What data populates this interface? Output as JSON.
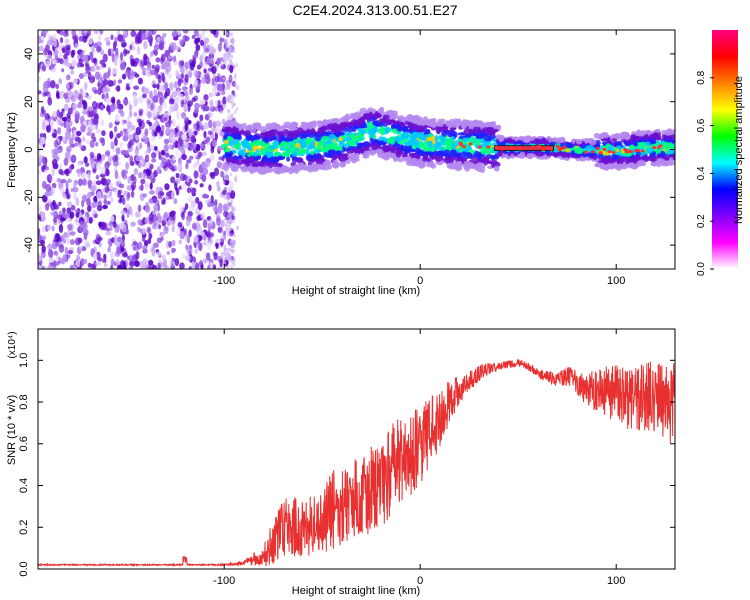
{
  "title": "C2E4.2024.313.00.51.E27",
  "colors": {
    "snr_line": "#e83030",
    "spectral_tint": "#7b2fd9",
    "track_core": "#e0304a"
  },
  "colorbar": {
    "label": "Normalized spectral amplitude",
    "ticks": [
      "0.0",
      "0.2",
      "0.4",
      "0.6",
      "0.8"
    ],
    "colormap": [
      "#ffffff",
      "#ff00ff",
      "#8000ff",
      "#0000ff",
      "#00ffff",
      "#00ff00",
      "#ffff00",
      "#ff8000",
      "#ff0000",
      "#ff0080"
    ]
  },
  "chart_data": [
    {
      "type": "heatmap",
      "title": "C2E4.2024.313.00.51.E27",
      "xlabel": "Height of straight line (km)",
      "ylabel": "Frequency (Hz)",
      "xlim": [
        -195,
        130
      ],
      "ylim": [
        -50,
        50
      ],
      "xticks": [
        "-100",
        "0",
        "100"
      ],
      "yticks": [
        "-40",
        "-20",
        "0",
        "20",
        "40"
      ],
      "colorbar_range": [
        0,
        1
      ],
      "track": {
        "x": [
          -100,
          -80,
          -60,
          -40,
          -25,
          -10,
          0,
          20,
          40,
          60,
          80,
          100,
          120,
          130
        ],
        "center_hz": [
          2,
          0,
          1,
          3,
          8,
          5,
          3,
          2,
          1,
          1,
          0,
          -1,
          1,
          1
        ]
      }
    },
    {
      "type": "line",
      "xlabel": "Height of straight line (km)",
      "ylabel": "SNR (10 * v/v)",
      "y_multiplier": "(x10⁴)",
      "xlim": [
        -195,
        130
      ],
      "ylim": [
        0,
        1.15
      ],
      "xticks": [
        "-100",
        "0",
        "100"
      ],
      "yticks": [
        "0.0",
        "0.2",
        "0.4",
        "0.6",
        "0.8",
        "1.0"
      ],
      "series": [
        {
          "x": [
            -195,
            -180,
            -160,
            -140,
            -120,
            -100,
            -90,
            -80,
            -75,
            -70,
            -65,
            -60,
            -55,
            -50,
            -45,
            -40,
            -35,
            -30,
            -25,
            -20,
            -15,
            -10,
            -5,
            0,
            5,
            10,
            15,
            20,
            25,
            30,
            35,
            40,
            45,
            50,
            55,
            60,
            65,
            70,
            75,
            80,
            85,
            90,
            95,
            100,
            105,
            110,
            115,
            120,
            125,
            130
          ],
          "values": [
            0.02,
            0.02,
            0.02,
            0.02,
            0.02,
            0.02,
            0.03,
            0.06,
            0.13,
            0.2,
            0.2,
            0.2,
            0.2,
            0.23,
            0.28,
            0.3,
            0.33,
            0.37,
            0.37,
            0.42,
            0.47,
            0.52,
            0.55,
            0.6,
            0.65,
            0.73,
            0.8,
            0.86,
            0.9,
            0.94,
            0.96,
            0.97,
            0.98,
            0.99,
            0.97,
            0.94,
            0.92,
            0.91,
            0.92,
            0.9,
            0.86,
            0.85,
            0.85,
            0.85,
            0.82,
            0.82,
            0.82,
            0.82,
            0.8,
            0.8
          ],
          "noise_amp": [
            0.003,
            0.003,
            0.003,
            0.003,
            0.003,
            0.004,
            0.01,
            0.05,
            0.11,
            0.15,
            0.15,
            0.15,
            0.15,
            0.17,
            0.19,
            0.2,
            0.2,
            0.2,
            0.22,
            0.22,
            0.22,
            0.22,
            0.2,
            0.2,
            0.17,
            0.15,
            0.1,
            0.07,
            0.05,
            0.04,
            0.03,
            0.02,
            0.02,
            0.02,
            0.02,
            0.02,
            0.03,
            0.03,
            0.05,
            0.06,
            0.09,
            0.1,
            0.13,
            0.14,
            0.15,
            0.16,
            0.17,
            0.18,
            0.2,
            0.2
          ]
        }
      ]
    }
  ]
}
